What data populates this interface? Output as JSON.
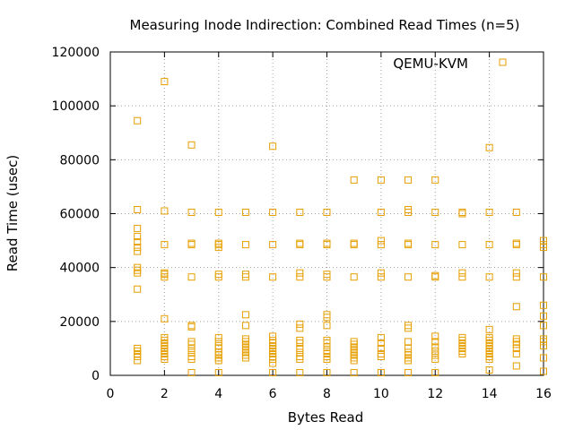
{
  "chart_data": {
    "type": "scatter",
    "title": "Measuring Inode Indirection: Combined Read Times (n=5)",
    "xlabel": "Bytes Read",
    "ylabel": "Read Time (usec)",
    "xlim": [
      0,
      16
    ],
    "ylim": [
      0,
      120000
    ],
    "x_ticks": [
      0,
      2,
      4,
      6,
      8,
      10,
      12,
      14,
      16
    ],
    "y_ticks": [
      0,
      20000,
      40000,
      60000,
      80000,
      100000,
      120000
    ],
    "grid": true,
    "legend_position": "top-right",
    "point_marker": "open-square",
    "series": [
      {
        "name": "QEMU-KVM",
        "color": "#e69f00",
        "points": [
          [
            1,
            94500
          ],
          [
            1,
            61500
          ],
          [
            1,
            54500
          ],
          [
            1,
            51500
          ],
          [
            1,
            49500
          ],
          [
            1,
            47500
          ],
          [
            1,
            46000
          ],
          [
            1,
            40000
          ],
          [
            1,
            39000
          ],
          [
            1,
            38000
          ],
          [
            1,
            32000
          ],
          [
            1,
            10000
          ],
          [
            1,
            9000
          ],
          [
            1,
            8000
          ],
          [
            1,
            7000
          ],
          [
            1,
            5500
          ],
          [
            2,
            109000
          ],
          [
            2,
            61000
          ],
          [
            2,
            48500
          ],
          [
            2,
            38000
          ],
          [
            2,
            37500
          ],
          [
            2,
            36500
          ],
          [
            2,
            21000
          ],
          [
            2,
            14000
          ],
          [
            2,
            13000
          ],
          [
            2,
            12000
          ],
          [
            2,
            11000
          ],
          [
            2,
            10000
          ],
          [
            2,
            9000
          ],
          [
            2,
            8000
          ],
          [
            2,
            7000
          ],
          [
            2,
            6000
          ],
          [
            3,
            85500
          ],
          [
            3,
            60500
          ],
          [
            3,
            49000
          ],
          [
            3,
            48500
          ],
          [
            3,
            36500
          ],
          [
            3,
            18500
          ],
          [
            3,
            18000
          ],
          [
            3,
            12500
          ],
          [
            3,
            11500
          ],
          [
            3,
            10000
          ],
          [
            3,
            8500
          ],
          [
            3,
            7000
          ],
          [
            3,
            6000
          ],
          [
            3,
            1000
          ],
          [
            4,
            60500
          ],
          [
            4,
            49000
          ],
          [
            4,
            48500
          ],
          [
            4,
            47500
          ],
          [
            4,
            37500
          ],
          [
            4,
            36500
          ],
          [
            4,
            14000
          ],
          [
            4,
            12500
          ],
          [
            4,
            11000
          ],
          [
            4,
            10000
          ],
          [
            4,
            8500
          ],
          [
            4,
            7500
          ],
          [
            4,
            6500
          ],
          [
            4,
            5500
          ],
          [
            4,
            1000
          ],
          [
            5,
            60500
          ],
          [
            5,
            48500
          ],
          [
            5,
            37500
          ],
          [
            5,
            36500
          ],
          [
            5,
            22500
          ],
          [
            5,
            18500
          ],
          [
            5,
            13500
          ],
          [
            5,
            12500
          ],
          [
            5,
            11500
          ],
          [
            5,
            10500
          ],
          [
            5,
            9500
          ],
          [
            5,
            8500
          ],
          [
            5,
            7500
          ],
          [
            5,
            6500
          ],
          [
            6,
            85000
          ],
          [
            6,
            60500
          ],
          [
            6,
            48500
          ],
          [
            6,
            36500
          ],
          [
            6,
            14500
          ],
          [
            6,
            13000
          ],
          [
            6,
            12000
          ],
          [
            6,
            11000
          ],
          [
            6,
            10000
          ],
          [
            6,
            9000
          ],
          [
            6,
            8000
          ],
          [
            6,
            7000
          ],
          [
            6,
            6000
          ],
          [
            6,
            4500
          ],
          [
            6,
            1000
          ],
          [
            7,
            60500
          ],
          [
            7,
            49000
          ],
          [
            7,
            48500
          ],
          [
            7,
            38000
          ],
          [
            7,
            36500
          ],
          [
            7,
            19000
          ],
          [
            7,
            17500
          ],
          [
            7,
            13000
          ],
          [
            7,
            12000
          ],
          [
            7,
            10000
          ],
          [
            7,
            8500
          ],
          [
            7,
            7000
          ],
          [
            7,
            6000
          ],
          [
            7,
            1000
          ],
          [
            8,
            60500
          ],
          [
            8,
            49000
          ],
          [
            8,
            48500
          ],
          [
            8,
            37500
          ],
          [
            8,
            36500
          ],
          [
            8,
            22500
          ],
          [
            8,
            21500
          ],
          [
            8,
            18500
          ],
          [
            8,
            13000
          ],
          [
            8,
            12000
          ],
          [
            8,
            10500
          ],
          [
            8,
            9000
          ],
          [
            8,
            8000
          ],
          [
            8,
            7000
          ],
          [
            8,
            6000
          ],
          [
            8,
            1000
          ],
          [
            9,
            72500
          ],
          [
            9,
            49000
          ],
          [
            9,
            48500
          ],
          [
            9,
            36500
          ],
          [
            9,
            12500
          ],
          [
            9,
            11500
          ],
          [
            9,
            10500
          ],
          [
            9,
            9500
          ],
          [
            9,
            8500
          ],
          [
            9,
            7500
          ],
          [
            9,
            6500
          ],
          [
            9,
            5500
          ],
          [
            9,
            1000
          ],
          [
            10,
            72500
          ],
          [
            10,
            60500
          ],
          [
            10,
            50000
          ],
          [
            10,
            48500
          ],
          [
            10,
            38000
          ],
          [
            10,
            36500
          ],
          [
            10,
            14000
          ],
          [
            10,
            12000
          ],
          [
            10,
            10000
          ],
          [
            10,
            8000
          ],
          [
            10,
            7000
          ],
          [
            10,
            1000
          ],
          [
            11,
            72500
          ],
          [
            11,
            61500
          ],
          [
            11,
            60500
          ],
          [
            11,
            49000
          ],
          [
            11,
            48500
          ],
          [
            11,
            36500
          ],
          [
            11,
            18500
          ],
          [
            11,
            17500
          ],
          [
            11,
            12500
          ],
          [
            11,
            10000
          ],
          [
            11,
            8500
          ],
          [
            11,
            7500
          ],
          [
            11,
            6500
          ],
          [
            11,
            5500
          ],
          [
            11,
            1000
          ],
          [
            12,
            72500
          ],
          [
            12,
            60500
          ],
          [
            12,
            48500
          ],
          [
            12,
            37000
          ],
          [
            12,
            36500
          ],
          [
            12,
            14500
          ],
          [
            12,
            12500
          ],
          [
            12,
            10500
          ],
          [
            12,
            9000
          ],
          [
            12,
            7500
          ],
          [
            12,
            6000
          ],
          [
            12,
            1000
          ],
          [
            13,
            60500
          ],
          [
            13,
            60000
          ],
          [
            13,
            48500
          ],
          [
            13,
            38000
          ],
          [
            13,
            36500
          ],
          [
            13,
            14000
          ],
          [
            13,
            13000
          ],
          [
            13,
            12000
          ],
          [
            13,
            11000
          ],
          [
            13,
            10000
          ],
          [
            13,
            9000
          ],
          [
            13,
            8000
          ],
          [
            14,
            84500
          ],
          [
            14,
            60500
          ],
          [
            14,
            48500
          ],
          [
            14,
            36500
          ],
          [
            14,
            17000
          ],
          [
            14,
            14000
          ],
          [
            14,
            13000
          ],
          [
            14,
            12000
          ],
          [
            14,
            11000
          ],
          [
            14,
            10000
          ],
          [
            14,
            9000
          ],
          [
            14,
            8000
          ],
          [
            14,
            7000
          ],
          [
            14,
            6000
          ],
          [
            14,
            2000
          ],
          [
            15,
            60500
          ],
          [
            15,
            49000
          ],
          [
            15,
            48500
          ],
          [
            15,
            38000
          ],
          [
            15,
            36500
          ],
          [
            15,
            25500
          ],
          [
            15,
            13500
          ],
          [
            15,
            12500
          ],
          [
            15,
            11500
          ],
          [
            15,
            10000
          ],
          [
            15,
            8000
          ],
          [
            15,
            3500
          ],
          [
            16,
            50000
          ],
          [
            16,
            48500
          ],
          [
            16,
            47500
          ],
          [
            16,
            36500
          ],
          [
            16,
            26000
          ],
          [
            16,
            22000
          ],
          [
            16,
            18500
          ],
          [
            16,
            13500
          ],
          [
            16,
            12500
          ],
          [
            16,
            11000
          ],
          [
            16,
            6500
          ],
          [
            16,
            1500
          ]
        ]
      }
    ]
  }
}
